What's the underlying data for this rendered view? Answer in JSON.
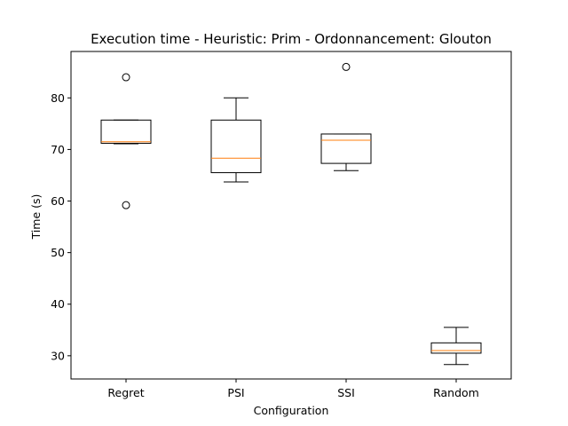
{
  "chart_data": {
    "type": "box",
    "title": "Execution time - Heuristic: Prim - Ordonnancement: Glouton",
    "xlabel": "Configuration",
    "ylabel": "Time (s)",
    "ylim": [
      25.5,
      89
    ],
    "yticks": [
      30,
      40,
      50,
      60,
      70,
      80
    ],
    "grid": false,
    "categories": [
      "Regret",
      "PSI",
      "SSI",
      "Random"
    ],
    "boxes": [
      {
        "whisker_low": 71.1,
        "q1": 71.2,
        "median": 71.5,
        "q3": 75.7,
        "whisker_high": 75.7,
        "outliers": [
          84.0,
          59.2
        ]
      },
      {
        "whisker_low": 63.7,
        "q1": 65.5,
        "median": 68.3,
        "q3": 75.7,
        "whisker_high": 80.0,
        "outliers": []
      },
      {
        "whisker_low": 65.9,
        "q1": 67.3,
        "median": 71.8,
        "q3": 73.0,
        "whisker_high": 73.0,
        "outliers": [
          86.0
        ]
      },
      {
        "whisker_low": 28.3,
        "q1": 30.5,
        "median": 31.0,
        "q3": 32.5,
        "whisker_high": 35.5,
        "outliers": []
      }
    ],
    "colors": {
      "box": "#000000",
      "median": "#ff7f0e",
      "background": "#ffffff"
    }
  }
}
